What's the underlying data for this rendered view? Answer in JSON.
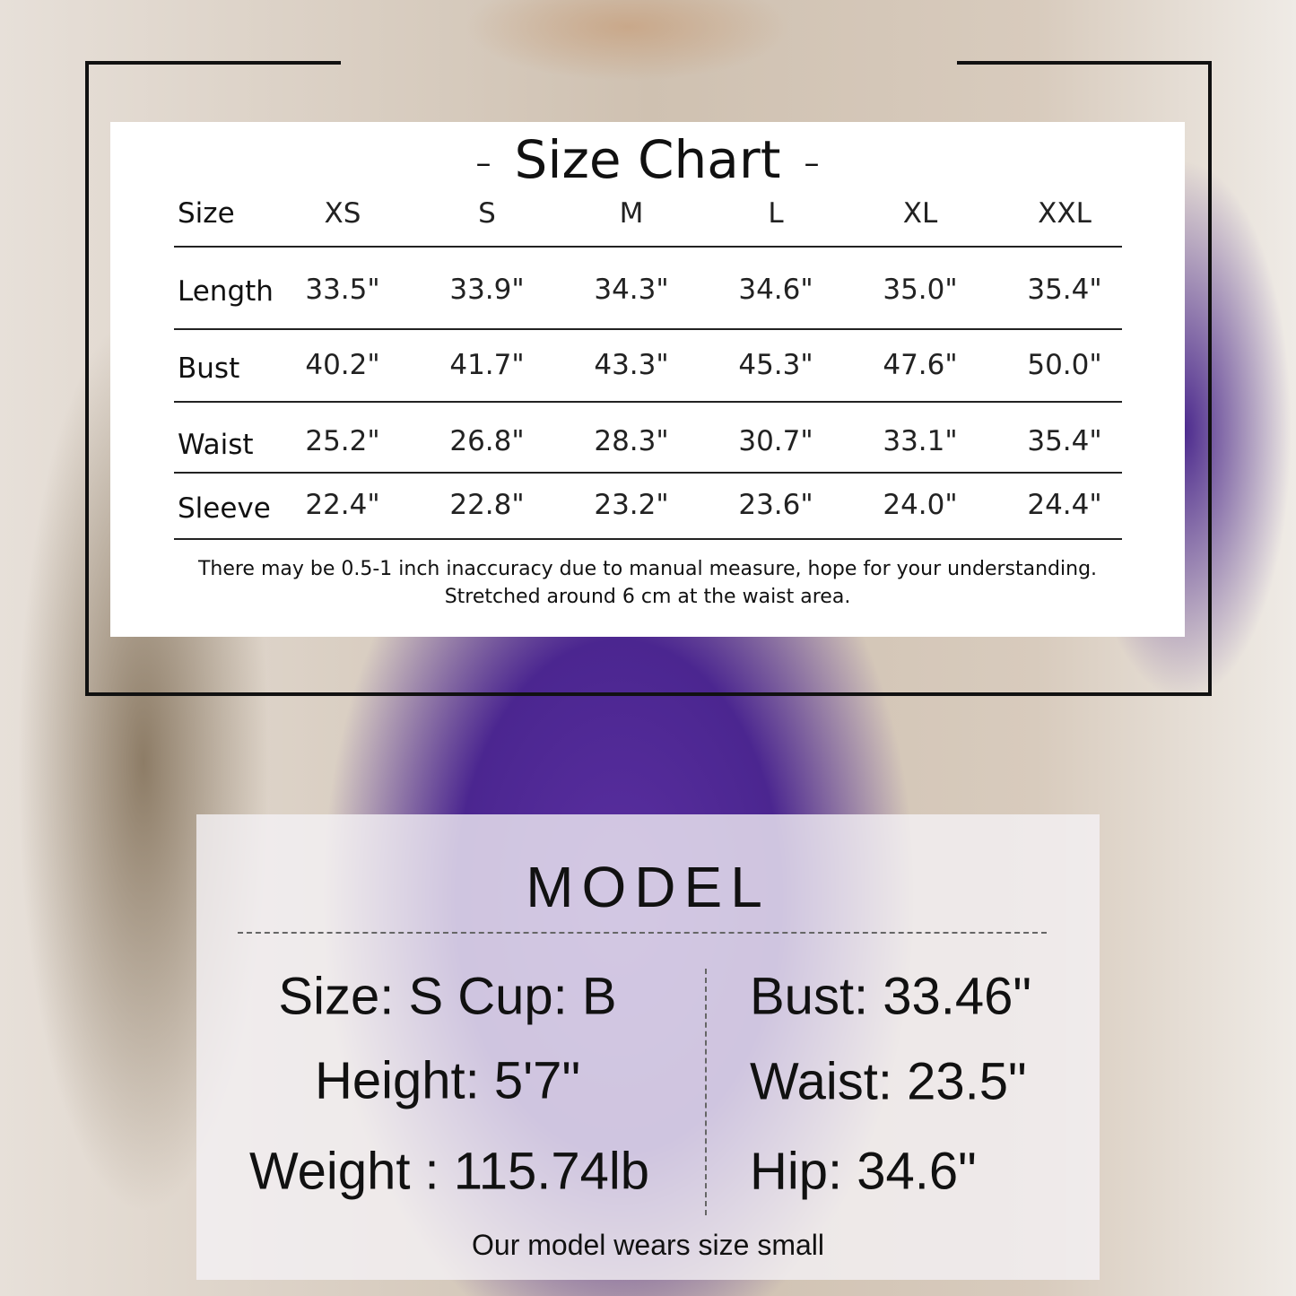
{
  "size_chart": {
    "title": "Size Chart",
    "title_dash": "–",
    "header_label": "Size",
    "sizes": [
      "XS",
      "S",
      "M",
      "L",
      "XL",
      "XXL"
    ],
    "rows": [
      {
        "label": "Length",
        "values": [
          "33.5\"",
          "33.9\"",
          "34.3\"",
          "34.6\"",
          "35.0\"",
          "35.4\""
        ]
      },
      {
        "label": "Bust",
        "values": [
          "40.2\"",
          "41.7\"",
          "43.3\"",
          "45.3\"",
          "47.6\"",
          "50.0\""
        ]
      },
      {
        "label": "Waist",
        "values": [
          "25.2\"",
          "26.8\"",
          "28.3\"",
          "30.7\"",
          "33.1\"",
          "35.4\""
        ]
      },
      {
        "label": "Sleeve",
        "values": [
          "22.4\"",
          "22.8\"",
          "23.2\"",
          "23.6\"",
          "24.0\"",
          "24.4\""
        ]
      }
    ],
    "note_1": "There may be 0.5-1 inch inaccuracy due to manual measure, hope for your understanding.",
    "note_2": "Stretched around 6 cm at the waist area."
  },
  "model": {
    "title": "MODEL",
    "left": [
      "Size: S Cup: B",
      "Height: 5'7\"",
      "Weight : 115.74lb"
    ],
    "right": [
      "Bust: 33.46\"",
      "Waist: 23.5\"",
      "Hip: 34.6\""
    ],
    "footer": "Our model wears size small"
  },
  "colors": {
    "dress": "#4b2690",
    "frame": "#111111"
  }
}
